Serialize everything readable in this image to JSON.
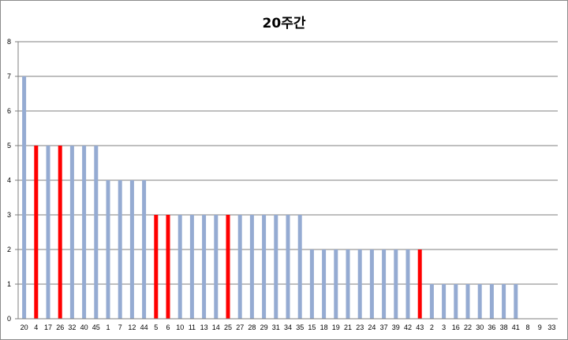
{
  "chart_data": {
    "type": "bar",
    "title": "20주간",
    "xlabel": "",
    "ylabel": "",
    "ylim": [
      0,
      8
    ],
    "yticks": [
      0,
      1,
      2,
      3,
      4,
      5,
      6,
      7,
      8
    ],
    "grid": true,
    "legend": "none",
    "categories": [
      "20",
      "4",
      "17",
      "26",
      "32",
      "40",
      "45",
      "1",
      "7",
      "12",
      "44",
      "5",
      "6",
      "10",
      "11",
      "13",
      "14",
      "25",
      "27",
      "28",
      "29",
      "31",
      "34",
      "35",
      "15",
      "18",
      "19",
      "21",
      "23",
      "24",
      "37",
      "39",
      "42",
      "43",
      "2",
      "3",
      "16",
      "22",
      "30",
      "36",
      "38",
      "41",
      "8",
      "9",
      "33"
    ],
    "values": [
      7,
      5,
      5,
      5,
      5,
      5,
      5,
      4,
      4,
      4,
      4,
      3,
      3,
      3,
      3,
      3,
      3,
      3,
      3,
      3,
      3,
      3,
      3,
      3,
      2,
      2,
      2,
      2,
      2,
      2,
      2,
      2,
      2,
      2,
      1,
      1,
      1,
      1,
      1,
      1,
      1,
      1,
      0,
      0,
      0
    ],
    "highlighted": [
      "4",
      "26",
      "5",
      "6",
      "25",
      "43"
    ],
    "colors": {
      "default": "#95abd2",
      "highlight": "#ff0000",
      "grid": "#7f7f7f"
    }
  }
}
